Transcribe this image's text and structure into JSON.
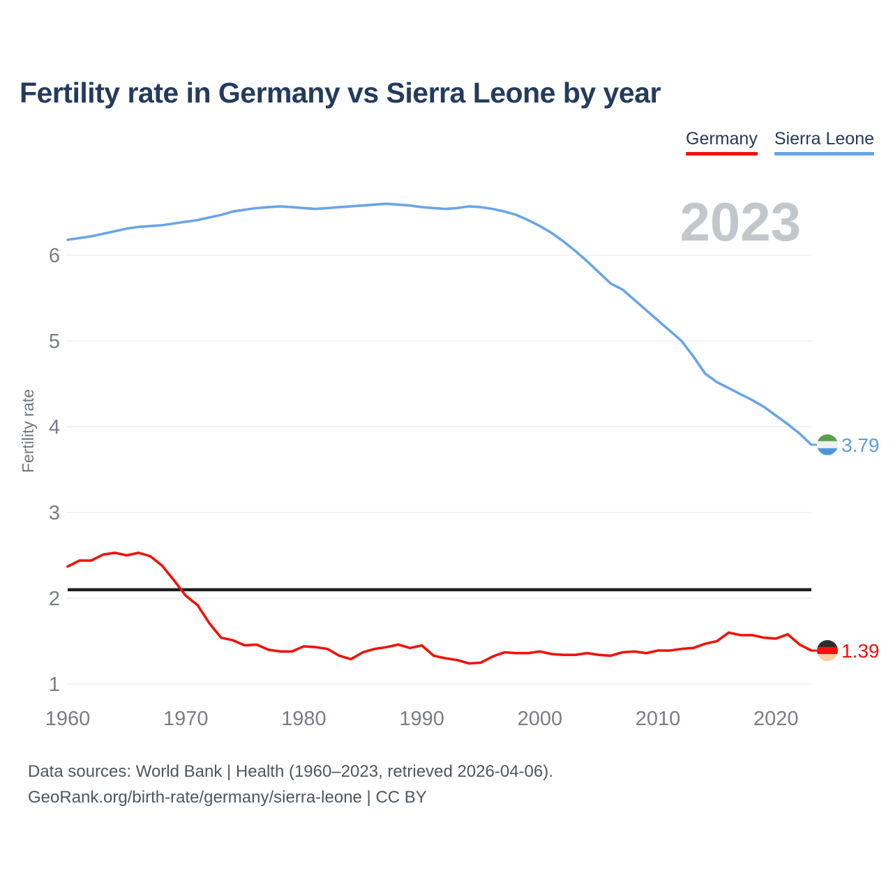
{
  "page": {
    "title": "Fertility rate in Germany vs Sierra Leone by year"
  },
  "legend": {
    "items": [
      {
        "label": "Germany",
        "color": "#F01209"
      },
      {
        "label": "Sierra Leone",
        "color": "#69A5E6"
      }
    ]
  },
  "footer": {
    "line1": "Data sources: World Bank | Health (1960–2023, retrieved 2026-04-06).",
    "line2": "GeoRank.org/birth-rate/germany/sierra-leone | CC BY"
  },
  "chart_data": {
    "type": "line",
    "title": "Fertility rate in Germany vs Sierra Leone by year",
    "xlabel": "",
    "ylabel": "Fertility rate",
    "watermark": "2023",
    "grid": true,
    "xlim": [
      1960,
      2023
    ],
    "ylim": [
      1,
      6.7
    ],
    "y_ticks": [
      1,
      2,
      3,
      4,
      5,
      6
    ],
    "x_ticks": [
      1960,
      1970,
      1980,
      1990,
      2000,
      2010,
      2020
    ],
    "reference_line": {
      "value": 2.1,
      "color": "#1E1E1E"
    },
    "colors": {
      "grid": "#EAEAEC",
      "tick_text": "#787D84",
      "axis_title": "#71767C",
      "watermark": "#C2C7CC"
    },
    "years": [
      1960,
      1961,
      1962,
      1963,
      1964,
      1965,
      1966,
      1967,
      1968,
      1969,
      1970,
      1971,
      1972,
      1973,
      1974,
      1975,
      1976,
      1977,
      1978,
      1979,
      1980,
      1981,
      1982,
      1983,
      1984,
      1985,
      1986,
      1987,
      1988,
      1989,
      1990,
      1991,
      1992,
      1993,
      1994,
      1995,
      1996,
      1997,
      1998,
      1999,
      2000,
      2001,
      2002,
      2003,
      2004,
      2005,
      2006,
      2007,
      2008,
      2009,
      2010,
      2011,
      2012,
      2013,
      2014,
      2015,
      2016,
      2017,
      2018,
      2019,
      2020,
      2021,
      2022,
      2023
    ],
    "series": [
      {
        "name": "Sierra Leone",
        "color": "#69A5E6",
        "label_color": "#5C9EE0",
        "end_label": "3.79",
        "flag_colors": [
          "#5A9E49",
          "#EFF2EF",
          "#4E94DC"
        ],
        "values": [
          6.18,
          6.2,
          6.22,
          6.25,
          6.28,
          6.31,
          6.33,
          6.34,
          6.35,
          6.37,
          6.39,
          6.41,
          6.44,
          6.47,
          6.51,
          6.53,
          6.55,
          6.56,
          6.57,
          6.56,
          6.55,
          6.54,
          6.55,
          6.56,
          6.57,
          6.58,
          6.59,
          6.6,
          6.59,
          6.58,
          6.56,
          6.55,
          6.54,
          6.55,
          6.57,
          6.56,
          6.54,
          6.51,
          6.47,
          6.41,
          6.34,
          6.26,
          6.16,
          6.05,
          5.93,
          5.8,
          5.67,
          5.6,
          5.48,
          5.36,
          5.24,
          5.12,
          5.0,
          4.82,
          4.62,
          4.52,
          4.45,
          4.38,
          4.31,
          4.23,
          4.13,
          4.03,
          3.92,
          3.79
        ]
      },
      {
        "name": "Germany",
        "color": "#F01209",
        "label_color": "#F01209",
        "end_label": "1.39",
        "flag_colors": [
          "#322D2D",
          "#FC0F0C",
          "#FDCBA5"
        ],
        "values": [
          2.37,
          2.44,
          2.44,
          2.51,
          2.53,
          2.5,
          2.53,
          2.49,
          2.38,
          2.21,
          2.03,
          1.92,
          1.71,
          1.54,
          1.51,
          1.45,
          1.46,
          1.4,
          1.38,
          1.38,
          1.44,
          1.43,
          1.41,
          1.33,
          1.29,
          1.37,
          1.41,
          1.43,
          1.46,
          1.42,
          1.45,
          1.33,
          1.3,
          1.28,
          1.24,
          1.25,
          1.32,
          1.37,
          1.36,
          1.36,
          1.38,
          1.35,
          1.34,
          1.34,
          1.36,
          1.34,
          1.33,
          1.37,
          1.38,
          1.36,
          1.39,
          1.39,
          1.41,
          1.42,
          1.47,
          1.5,
          1.6,
          1.57,
          1.57,
          1.54,
          1.53,
          1.58,
          1.46,
          1.39
        ]
      }
    ]
  }
}
